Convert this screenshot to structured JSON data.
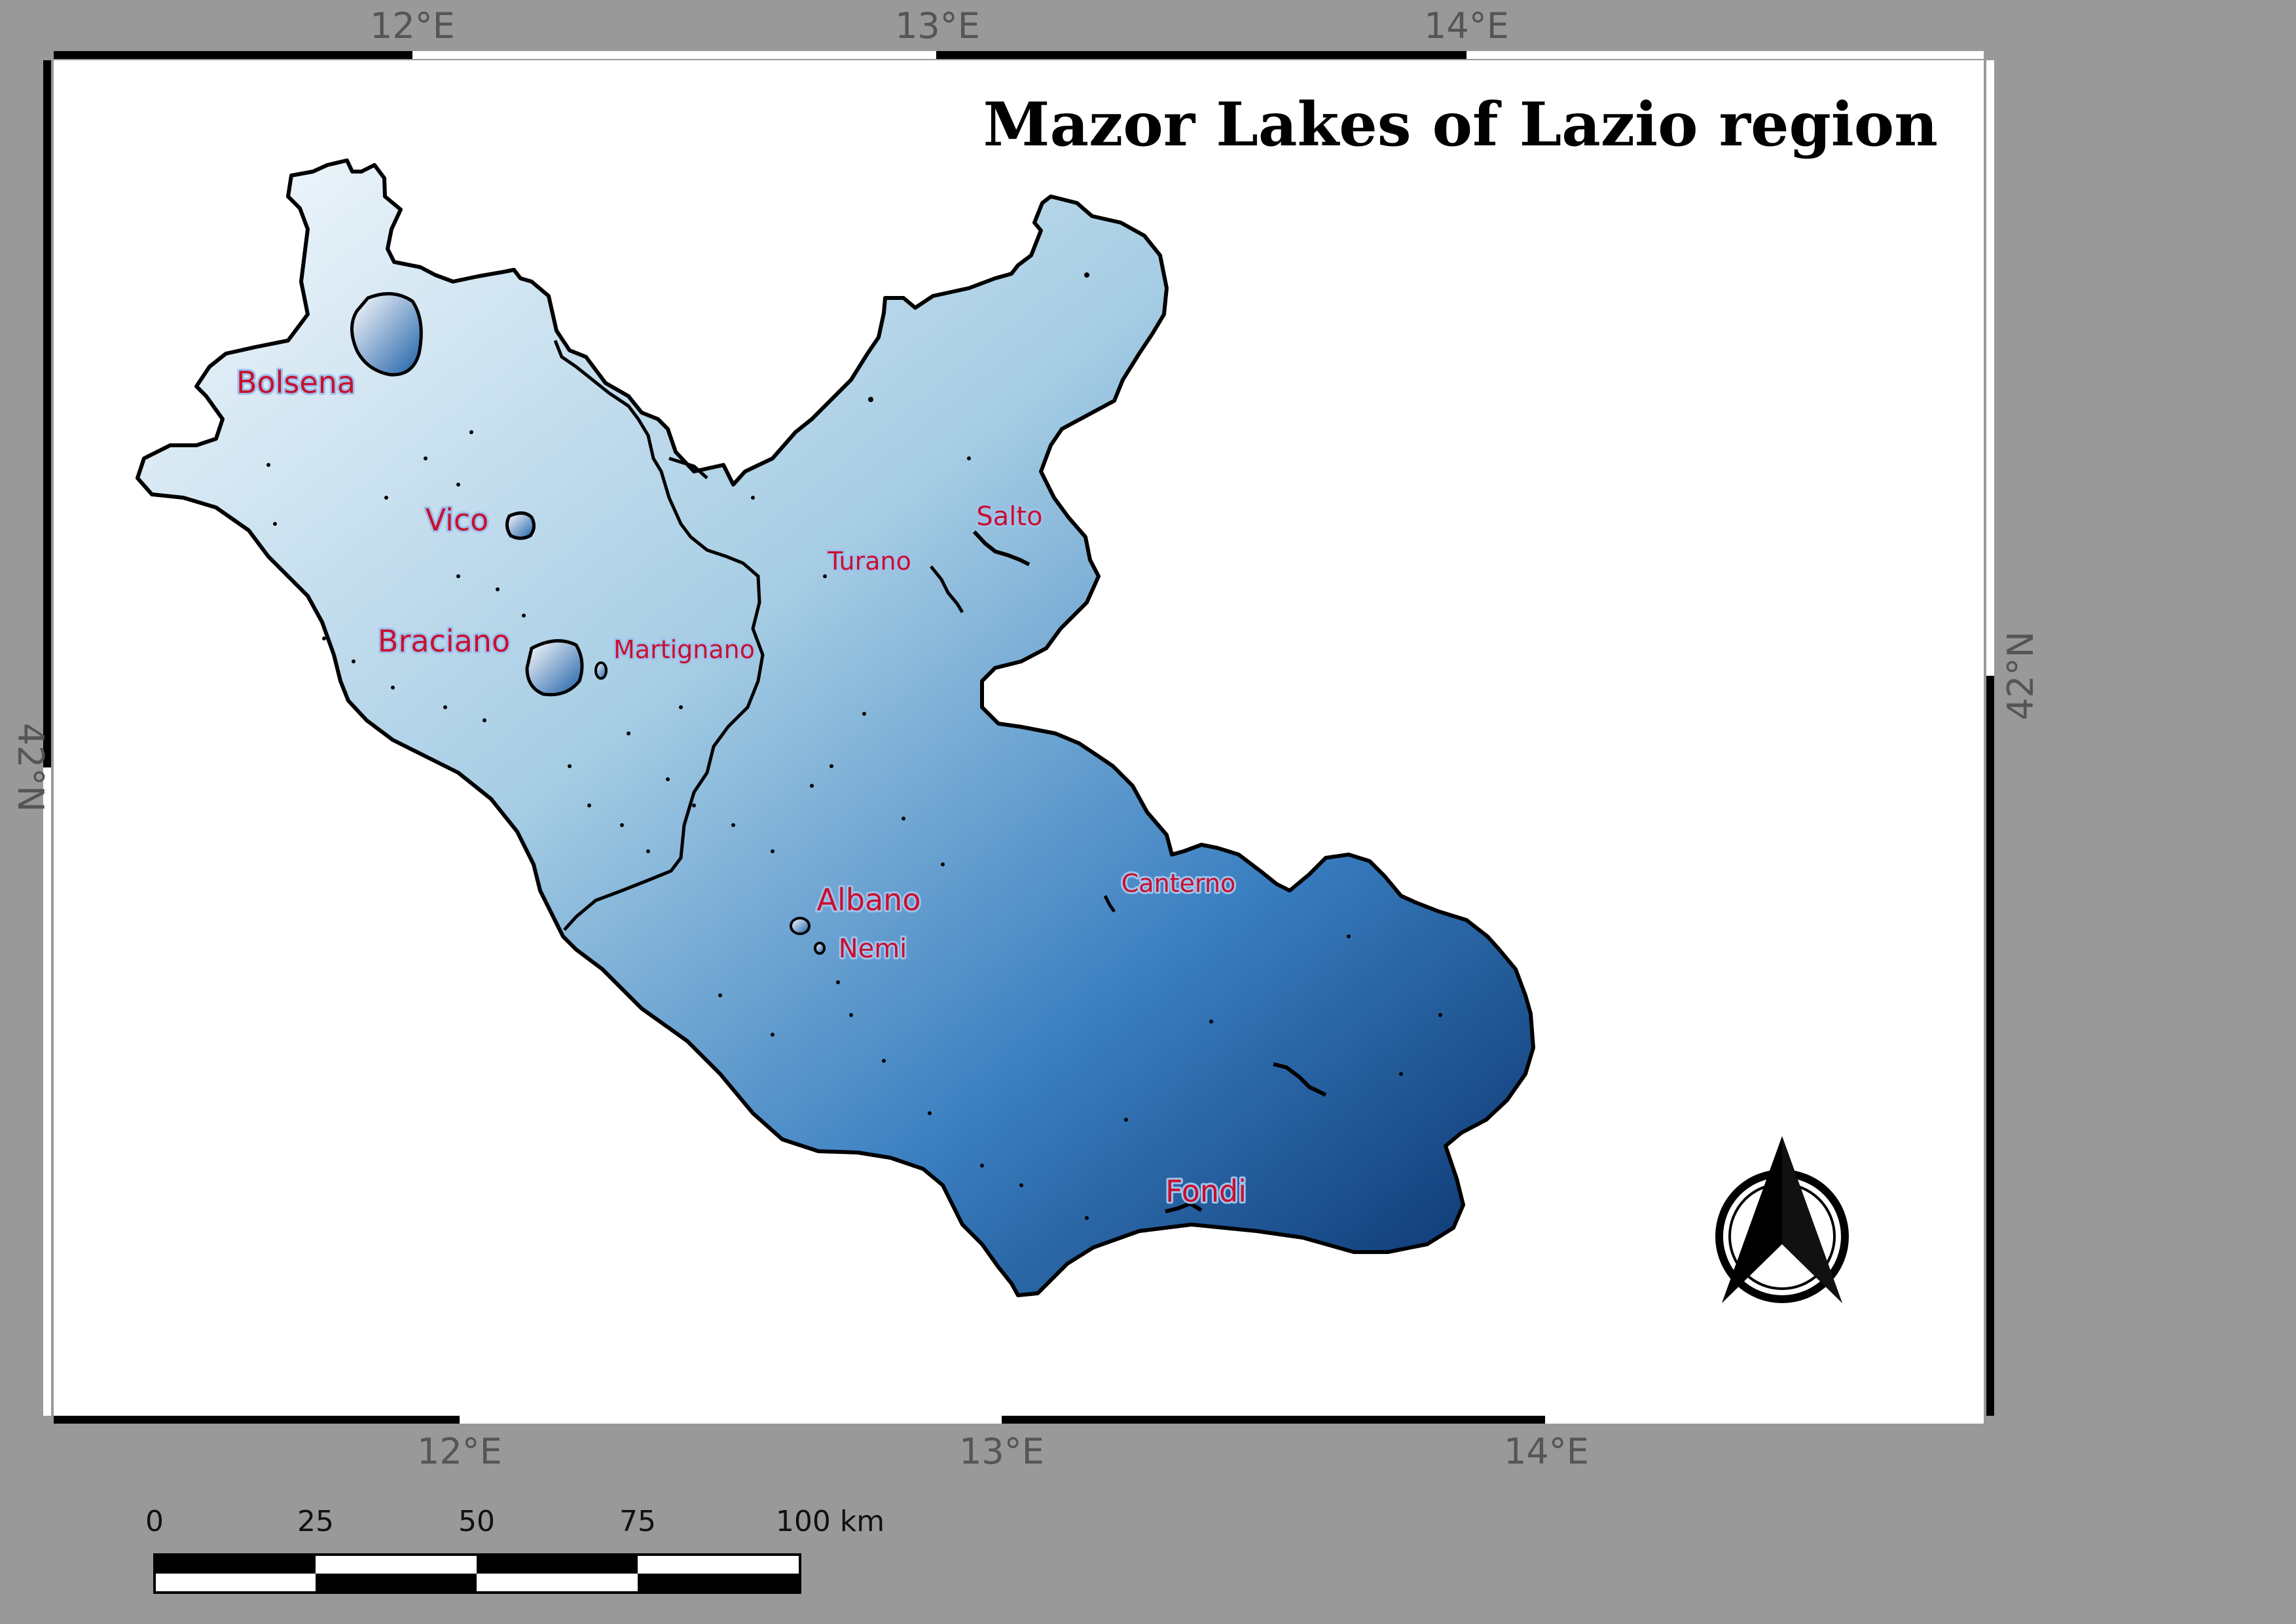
{
  "map": {
    "title": "Mazor Lakes of Lazio region",
    "grid": {
      "top_labels": [
        "12°E",
        "13°E",
        "14°E"
      ],
      "bottom_labels": [
        "12°E",
        "13°E",
        "14°E"
      ],
      "left_label": "42°N",
      "right_label": "42°N"
    },
    "lakes": [
      {
        "name": "Bolsena"
      },
      {
        "name": "Vico"
      },
      {
        "name": "Braciano"
      },
      {
        "name": "Martignano"
      },
      {
        "name": "Turano"
      },
      {
        "name": "Salto"
      },
      {
        "name": "Albano"
      },
      {
        "name": "Nemi"
      },
      {
        "name": "Canterno"
      },
      {
        "name": "Fondi"
      }
    ],
    "scale_bar": {
      "ticks": [
        "0",
        "25",
        "50",
        "75",
        "100 km"
      ]
    },
    "north_arrow": {
      "icon": "north-arrow-icon"
    },
    "colors": {
      "region_light": "#eef4fb",
      "region_mid": "#8fbfe0",
      "region_dark": "#08306b",
      "label": "#c8102e",
      "background": "#999999"
    }
  }
}
